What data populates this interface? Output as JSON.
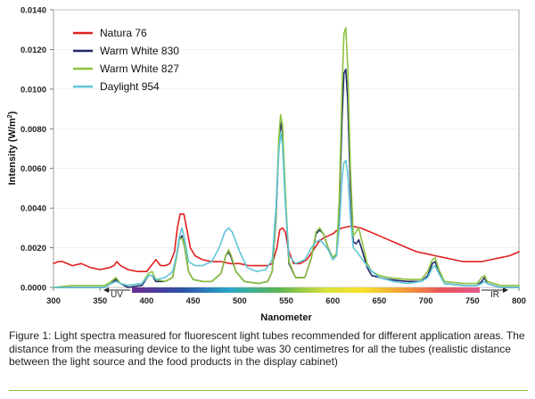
{
  "chart_data": {
    "type": "line",
    "title": "",
    "xlabel": "Nanometer",
    "ylabel": "Intensity (W/m",
    "ylabel_sup": "2",
    "ylabel_tail": ")",
    "xlim": [
      300,
      800
    ],
    "ylim": [
      0,
      0.014
    ],
    "x_ticks": [
      "300",
      "350",
      "400",
      "450",
      "500",
      "550",
      "600",
      "650",
      "700",
      "750",
      "800"
    ],
    "y_ticks": [
      "0.0000",
      "0.0020",
      "0.0040",
      "0.0060",
      "0.0080",
      "0.0100",
      "0.0120",
      "0.0140"
    ],
    "legend_position": "top-left",
    "band_labels": {
      "uv": "UV",
      "ir": "IR"
    },
    "series": [
      {
        "name": "Natura 76",
        "color": "#e02020",
        "points": [
          [
            300,
            0.0012
          ],
          [
            305,
            0.0013
          ],
          [
            310,
            0.0013
          ],
          [
            320,
            0.0011
          ],
          [
            330,
            0.0012
          ],
          [
            340,
            0.001
          ],
          [
            350,
            0.0009
          ],
          [
            360,
            0.001
          ],
          [
            365,
            0.0011
          ],
          [
            368,
            0.0013
          ],
          [
            372,
            0.0011
          ],
          [
            380,
            0.0009
          ],
          [
            390,
            0.0008
          ],
          [
            400,
            0.0008
          ],
          [
            405,
            0.0011
          ],
          [
            410,
            0.0014
          ],
          [
            415,
            0.0011
          ],
          [
            420,
            0.0011
          ],
          [
            425,
            0.0012
          ],
          [
            430,
            0.0018
          ],
          [
            433,
            0.003
          ],
          [
            436,
            0.0037
          ],
          [
            440,
            0.0037
          ],
          [
            443,
            0.003
          ],
          [
            447,
            0.002
          ],
          [
            452,
            0.0016
          ],
          [
            460,
            0.0014
          ],
          [
            470,
            0.0013
          ],
          [
            480,
            0.0013
          ],
          [
            490,
            0.0012
          ],
          [
            500,
            0.0012
          ],
          [
            510,
            0.0011
          ],
          [
            520,
            0.0011
          ],
          [
            530,
            0.0011
          ],
          [
            535,
            0.0012
          ],
          [
            540,
            0.002
          ],
          [
            543,
            0.0029
          ],
          [
            546,
            0.003
          ],
          [
            549,
            0.0028
          ],
          [
            553,
            0.0018
          ],
          [
            558,
            0.0012
          ],
          [
            565,
            0.0012
          ],
          [
            572,
            0.0014
          ],
          [
            578,
            0.0018
          ],
          [
            585,
            0.0023
          ],
          [
            590,
            0.0025
          ],
          [
            595,
            0.0026
          ],
          [
            600,
            0.0027
          ],
          [
            605,
            0.0029
          ],
          [
            610,
            0.003
          ],
          [
            620,
            0.0031
          ],
          [
            630,
            0.003
          ],
          [
            640,
            0.0028
          ],
          [
            650,
            0.0026
          ],
          [
            660,
            0.0024
          ],
          [
            670,
            0.0022
          ],
          [
            680,
            0.002
          ],
          [
            690,
            0.0018
          ],
          [
            700,
            0.0017
          ],
          [
            710,
            0.0016
          ],
          [
            720,
            0.0015
          ],
          [
            730,
            0.0014
          ],
          [
            740,
            0.0013
          ],
          [
            750,
            0.0013
          ],
          [
            760,
            0.0013
          ],
          [
            770,
            0.0014
          ],
          [
            780,
            0.0015
          ],
          [
            790,
            0.0016
          ],
          [
            800,
            0.0018
          ]
        ]
      },
      {
        "name": "Warm White 830",
        "color": "#23286b",
        "points": [
          [
            300,
            0.0
          ],
          [
            355,
            0.0
          ],
          [
            362,
            0.0002
          ],
          [
            367,
            0.0004
          ],
          [
            372,
            0.0002
          ],
          [
            380,
            0.0
          ],
          [
            395,
            0.0001
          ],
          [
            402,
            0.0006
          ],
          [
            406,
            0.0006
          ],
          [
            410,
            0.0003
          ],
          [
            420,
            0.0003
          ],
          [
            428,
            0.0005
          ],
          [
            432,
            0.0015
          ],
          [
            435,
            0.0024
          ],
          [
            438,
            0.0026
          ],
          [
            441,
            0.002
          ],
          [
            445,
            0.0008
          ],
          [
            450,
            0.0004
          ],
          [
            460,
            0.0003
          ],
          [
            470,
            0.0003
          ],
          [
            480,
            0.0007
          ],
          [
            485,
            0.0016
          ],
          [
            488,
            0.0018
          ],
          [
            491,
            0.0015
          ],
          [
            496,
            0.0008
          ],
          [
            505,
            0.0003
          ],
          [
            520,
            0.0002
          ],
          [
            530,
            0.0003
          ],
          [
            535,
            0.0008
          ],
          [
            539,
            0.0035
          ],
          [
            542,
            0.007
          ],
          [
            544,
            0.0083
          ],
          [
            546,
            0.0078
          ],
          [
            549,
            0.0045
          ],
          [
            553,
            0.0012
          ],
          [
            560,
            0.0005
          ],
          [
            570,
            0.0005
          ],
          [
            577,
            0.0015
          ],
          [
            582,
            0.0027
          ],
          [
            586,
            0.0029
          ],
          [
            590,
            0.0027
          ],
          [
            595,
            0.002
          ],
          [
            600,
            0.0015
          ],
          [
            604,
            0.0016
          ],
          [
            607,
            0.004
          ],
          [
            610,
            0.0085
          ],
          [
            612,
            0.0108
          ],
          [
            614,
            0.011
          ],
          [
            616,
            0.0095
          ],
          [
            619,
            0.005
          ],
          [
            622,
            0.0023
          ],
          [
            625,
            0.0022
          ],
          [
            628,
            0.0024
          ],
          [
            632,
            0.0018
          ],
          [
            637,
            0.001
          ],
          [
            642,
            0.0006
          ],
          [
            650,
            0.0005
          ],
          [
            660,
            0.0004
          ],
          [
            680,
            0.0003
          ],
          [
            695,
            0.0003
          ],
          [
            702,
            0.0006
          ],
          [
            707,
            0.0012
          ],
          [
            710,
            0.0013
          ],
          [
            714,
            0.0008
          ],
          [
            720,
            0.0002
          ],
          [
            740,
            0.0001
          ],
          [
            755,
            0.0001
          ],
          [
            760,
            0.0003
          ],
          [
            763,
            0.0005
          ],
          [
            766,
            0.0002
          ],
          [
            780,
            0.0
          ],
          [
            800,
            0.0
          ]
        ]
      },
      {
        "name": "Warm White 827",
        "color": "#8cc23f",
        "points": [
          [
            300,
            0.0
          ],
          [
            320,
            0.0001
          ],
          [
            355,
            0.0001
          ],
          [
            362,
            0.0003
          ],
          [
            367,
            0.0005
          ],
          [
            372,
            0.0002
          ],
          [
            380,
            0.0001
          ],
          [
            395,
            0.0002
          ],
          [
            402,
            0.0007
          ],
          [
            406,
            0.0008
          ],
          [
            410,
            0.0004
          ],
          [
            420,
            0.0003
          ],
          [
            428,
            0.0005
          ],
          [
            432,
            0.0015
          ],
          [
            435,
            0.0024
          ],
          [
            438,
            0.0025
          ],
          [
            441,
            0.002
          ],
          [
            445,
            0.0008
          ],
          [
            450,
            0.0004
          ],
          [
            460,
            0.0003
          ],
          [
            470,
            0.0003
          ],
          [
            480,
            0.0007
          ],
          [
            485,
            0.0016
          ],
          [
            488,
            0.0019
          ],
          [
            491,
            0.0016
          ],
          [
            496,
            0.0008
          ],
          [
            505,
            0.0003
          ],
          [
            520,
            0.0002
          ],
          [
            530,
            0.0003
          ],
          [
            535,
            0.0008
          ],
          [
            539,
            0.0037
          ],
          [
            542,
            0.0075
          ],
          [
            544,
            0.0087
          ],
          [
            546,
            0.0082
          ],
          [
            549,
            0.0048
          ],
          [
            553,
            0.0013
          ],
          [
            560,
            0.0005
          ],
          [
            570,
            0.0005
          ],
          [
            577,
            0.0015
          ],
          [
            582,
            0.0028
          ],
          [
            586,
            0.003
          ],
          [
            590,
            0.0027
          ],
          [
            595,
            0.002
          ],
          [
            600,
            0.0015
          ],
          [
            604,
            0.0017
          ],
          [
            607,
            0.0045
          ],
          [
            610,
            0.01
          ],
          [
            612,
            0.0128
          ],
          [
            614,
            0.0131
          ],
          [
            616,
            0.0112
          ],
          [
            619,
            0.006
          ],
          [
            622,
            0.0026
          ],
          [
            625,
            0.0028
          ],
          [
            628,
            0.003
          ],
          [
            632,
            0.0022
          ],
          [
            637,
            0.0012
          ],
          [
            642,
            0.0008
          ],
          [
            650,
            0.0006
          ],
          [
            660,
            0.0005
          ],
          [
            680,
            0.0004
          ],
          [
            695,
            0.0004
          ],
          [
            702,
            0.0008
          ],
          [
            707,
            0.0014
          ],
          [
            710,
            0.0015
          ],
          [
            714,
            0.0009
          ],
          [
            720,
            0.0003
          ],
          [
            740,
            0.0002
          ],
          [
            755,
            0.0002
          ],
          [
            760,
            0.0005
          ],
          [
            763,
            0.0006
          ],
          [
            766,
            0.0003
          ],
          [
            780,
            0.0001
          ],
          [
            800,
            0.0001
          ]
        ]
      },
      {
        "name": "Daylight 954",
        "color": "#5fc5d6",
        "points": [
          [
            300,
            0.0
          ],
          [
            355,
            0.0
          ],
          [
            362,
            0.0002
          ],
          [
            367,
            0.0003
          ],
          [
            372,
            0.0002
          ],
          [
            380,
            0.0001
          ],
          [
            395,
            0.0002
          ],
          [
            402,
            0.0006
          ],
          [
            406,
            0.0006
          ],
          [
            410,
            0.0004
          ],
          [
            420,
            0.0005
          ],
          [
            428,
            0.0008
          ],
          [
            432,
            0.0016
          ],
          [
            435,
            0.0025
          ],
          [
            438,
            0.003
          ],
          [
            441,
            0.0024
          ],
          [
            445,
            0.0013
          ],
          [
            452,
            0.0011
          ],
          [
            460,
            0.0011
          ],
          [
            470,
            0.0013
          ],
          [
            478,
            0.002
          ],
          [
            484,
            0.0028
          ],
          [
            488,
            0.003
          ],
          [
            492,
            0.0028
          ],
          [
            500,
            0.0018
          ],
          [
            508,
            0.001
          ],
          [
            518,
            0.0008
          ],
          [
            528,
            0.0009
          ],
          [
            535,
            0.0014
          ],
          [
            539,
            0.004
          ],
          [
            542,
            0.0068
          ],
          [
            544,
            0.0078
          ],
          [
            546,
            0.0072
          ],
          [
            549,
            0.0042
          ],
          [
            553,
            0.0016
          ],
          [
            560,
            0.0012
          ],
          [
            570,
            0.0014
          ],
          [
            577,
            0.002
          ],
          [
            582,
            0.0023
          ],
          [
            586,
            0.0024
          ],
          [
            590,
            0.0022
          ],
          [
            595,
            0.0019
          ],
          [
            600,
            0.0014
          ],
          [
            604,
            0.0016
          ],
          [
            607,
            0.003
          ],
          [
            610,
            0.0055
          ],
          [
            612,
            0.0063
          ],
          [
            614,
            0.0064
          ],
          [
            616,
            0.0058
          ],
          [
            619,
            0.0035
          ],
          [
            622,
            0.002
          ],
          [
            626,
            0.0018
          ],
          [
            632,
            0.0014
          ],
          [
            640,
            0.0009
          ],
          [
            650,
            0.0005
          ],
          [
            665,
            0.0003
          ],
          [
            680,
            0.0002
          ],
          [
            695,
            0.0003
          ],
          [
            702,
            0.0005
          ],
          [
            707,
            0.001
          ],
          [
            710,
            0.0011
          ],
          [
            714,
            0.0007
          ],
          [
            720,
            0.0002
          ],
          [
            740,
            0.0001
          ],
          [
            755,
            0.0001
          ],
          [
            760,
            0.0002
          ],
          [
            763,
            0.0003
          ],
          [
            766,
            0.0002
          ],
          [
            780,
            0.0
          ],
          [
            800,
            0.0
          ]
        ]
      }
    ]
  },
  "caption": "Figure 1: Light spectra measured for fluorescent light tubes recommended for different application areas. The distance from the measuring device to the light tube was 30 centimetres for all the tubes (realistic distance between the light source and the food products in the display cabinet)"
}
